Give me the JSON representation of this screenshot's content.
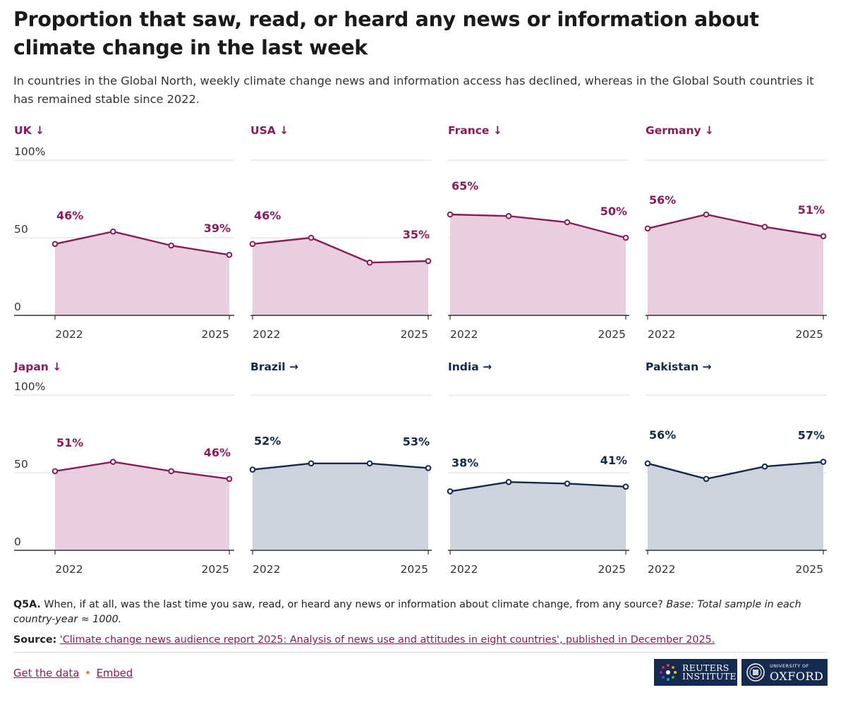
{
  "header": {
    "title": "Proportion that saw, read, or heard any news or information about climate change in the last week",
    "subtitle": "In countries in the Global North, weekly climate change news and information access has declined, whereas in the Global South countries it has remained stable since 2022."
  },
  "colors": {
    "north": "#8a1a5c",
    "north_fill": "#e7cfe0",
    "south": "#13294b",
    "south_fill": "#ccd3dd"
  },
  "chart_data": {
    "type": "area",
    "title": "Proportion that saw, read, or heard any news or information about climate change in the last week",
    "x": [
      2022,
      2023,
      2024,
      2025
    ],
    "x_tick_labels": [
      "2022",
      "2025"
    ],
    "y_tick_labels": [
      "100%",
      "50",
      "0"
    ],
    "ylim": [
      0,
      100
    ],
    "series": [
      {
        "name": "UK",
        "arrow": "↓",
        "group": "north",
        "values": [
          46,
          54,
          45,
          39
        ],
        "first_label": "46%",
        "last_label": "39%"
      },
      {
        "name": "USA",
        "arrow": "↓",
        "group": "north",
        "values": [
          46,
          50,
          34,
          35
        ],
        "first_label": "46%",
        "last_label": "35%"
      },
      {
        "name": "France",
        "arrow": "↓",
        "group": "north",
        "values": [
          65,
          64,
          60,
          50
        ],
        "first_label": "65%",
        "last_label": "50%"
      },
      {
        "name": "Germany",
        "arrow": "↓",
        "group": "north",
        "values": [
          56,
          65,
          57,
          51
        ],
        "first_label": "56%",
        "last_label": "51%"
      },
      {
        "name": "Japan",
        "arrow": "↓",
        "group": "north",
        "values": [
          51,
          57,
          51,
          46
        ],
        "first_label": "51%",
        "last_label": "46%"
      },
      {
        "name": "Brazil",
        "arrow": "→",
        "group": "south",
        "values": [
          52,
          56,
          56,
          53
        ],
        "first_label": "52%",
        "last_label": "53%"
      },
      {
        "name": "India",
        "arrow": "→",
        "group": "south",
        "values": [
          38,
          44,
          43,
          41
        ],
        "first_label": "38%",
        "last_label": "41%"
      },
      {
        "name": "Pakistan",
        "arrow": "→",
        "group": "south",
        "values": [
          56,
          46,
          54,
          57
        ],
        "first_label": "56%",
        "last_label": "57%"
      }
    ]
  },
  "footnote": {
    "q_label": "Q5A.",
    "question": " When, if at all, was the last time you saw, read, or heard any news or information about climate change, from any source? ",
    "base": "Base: Total sample in each country-year ≈ 1000."
  },
  "source": {
    "label": "Source:",
    "link_text": "'Climate change news audience report 2025: Analysis of news use and attitudes in eight countries', published in December 2025."
  },
  "links": {
    "get_data": "Get the data",
    "separator": "•",
    "embed": "Embed"
  },
  "logos": {
    "reuters_line1": "REUTERS",
    "reuters_line2": "INSTITUTE",
    "oxford_small": "UNIVERSITY OF",
    "oxford_big": "OXFORD"
  }
}
